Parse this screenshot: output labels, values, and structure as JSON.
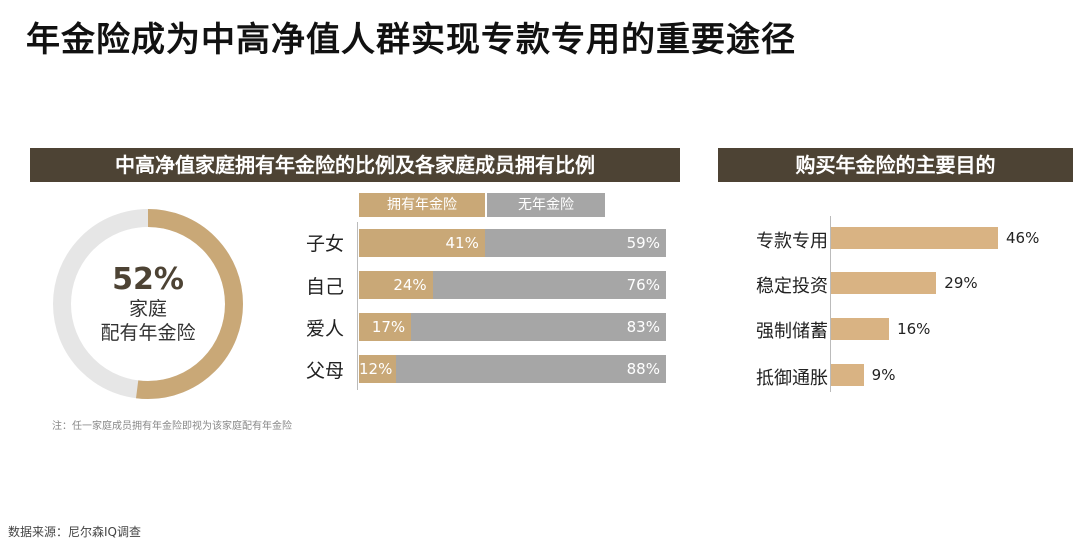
{
  "title": "年金险成为中高净值人群实现专款专用的重要途径",
  "colors": {
    "header_bg": "#4d4334",
    "gold": "#c9a877",
    "gray": "#a6a6a6",
    "light_gold": "#d9b383",
    "ring_bg": "#e6e6e6"
  },
  "left_panel": {
    "header": "中高净值家庭拥有年金险的比例及各家庭成员拥有比例",
    "donut": {
      "value": 52,
      "value_label": "52%",
      "label_line1": "家庭",
      "label_line2": "配有年金险"
    },
    "note": "注：任一家庭成员拥有年金险即视为该家庭配有年金险"
  },
  "right_panel": {
    "header": "购买年金险的主要目的"
  },
  "source": "数据来源：尼尔森IQ调查",
  "chart_data": [
    {
      "type": "pie",
      "values": [
        52,
        48
      ],
      "labels": [
        "家庭配有年金险",
        ""
      ]
    },
    {
      "type": "bar",
      "orientation": "horizontal",
      "stacked": true,
      "categories": [
        "子女",
        "自己",
        "爱人",
        "父母"
      ],
      "series": [
        {
          "name": "拥有年金险",
          "values": [
            41,
            24,
            17,
            12
          ],
          "labels": [
            "41%",
            "24%",
            "17%",
            "12%"
          ]
        },
        {
          "name": "无年金险",
          "values": [
            59,
            76,
            83,
            88
          ],
          "labels": [
            "59%",
            "76%",
            "83%",
            "88%"
          ]
        }
      ],
      "xlim": [
        0,
        100
      ],
      "legend": "top"
    },
    {
      "type": "bar",
      "orientation": "horizontal",
      "categories": [
        "专款专用",
        "稳定投资",
        "强制储蓄",
        "抵御通胀"
      ],
      "values": [
        46,
        29,
        16,
        9
      ],
      "labels": [
        "46%",
        "29%",
        "16%",
        "9%"
      ],
      "xlim": [
        0,
        100
      ]
    }
  ]
}
